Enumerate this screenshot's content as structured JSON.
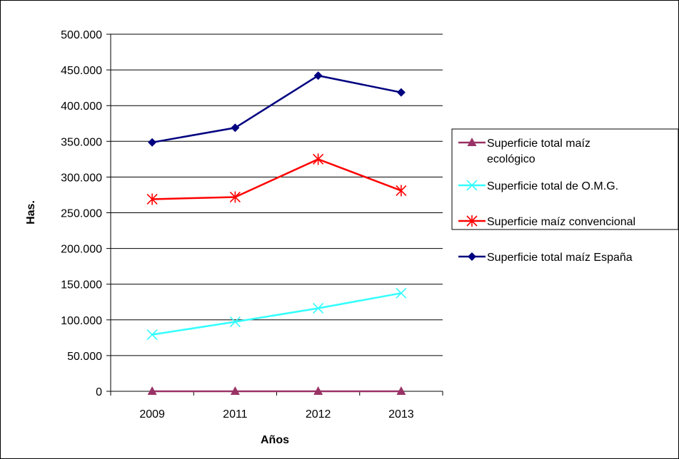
{
  "chart_data": {
    "type": "line",
    "title": "",
    "xlabel": "Años",
    "ylabel": "Has.",
    "categories": [
      "2009",
      "2011",
      "2012",
      "2013"
    ],
    "ylim": [
      0,
      500000
    ],
    "y_ticks": [
      0,
      50000,
      100000,
      150000,
      200000,
      250000,
      300000,
      350000,
      400000,
      450000,
      500000
    ],
    "y_tick_labels": [
      "0",
      "50.000",
      "100.000",
      "150.000",
      "200.000",
      "250.000",
      "300.000",
      "350.000",
      "400.000",
      "450.000",
      "500.000"
    ],
    "grid": true,
    "legend_position": "right",
    "series": [
      {
        "name_lines": [
          "Superficie total maíz",
          "ecológico"
        ],
        "values": [
          0,
          0,
          0,
          0
        ],
        "color": "#993366",
        "marker": "triangle"
      },
      {
        "name_lines": [
          "Superficie total de O.M.G."
        ],
        "values": [
          79300,
          97300,
          116300,
          137400
        ],
        "color": "#33ffff",
        "marker": "x"
      },
      {
        "name_lines": [
          "Superficie maíz convencional"
        ],
        "values": [
          269000,
          272000,
          325000,
          281000
        ],
        "color": "#ff0000",
        "marker": "asterisk"
      },
      {
        "name_lines": [
          "Superficie total maíz España"
        ],
        "values": [
          348500,
          369000,
          442000,
          418500
        ],
        "color": "#000080",
        "marker": "diamond"
      }
    ]
  }
}
